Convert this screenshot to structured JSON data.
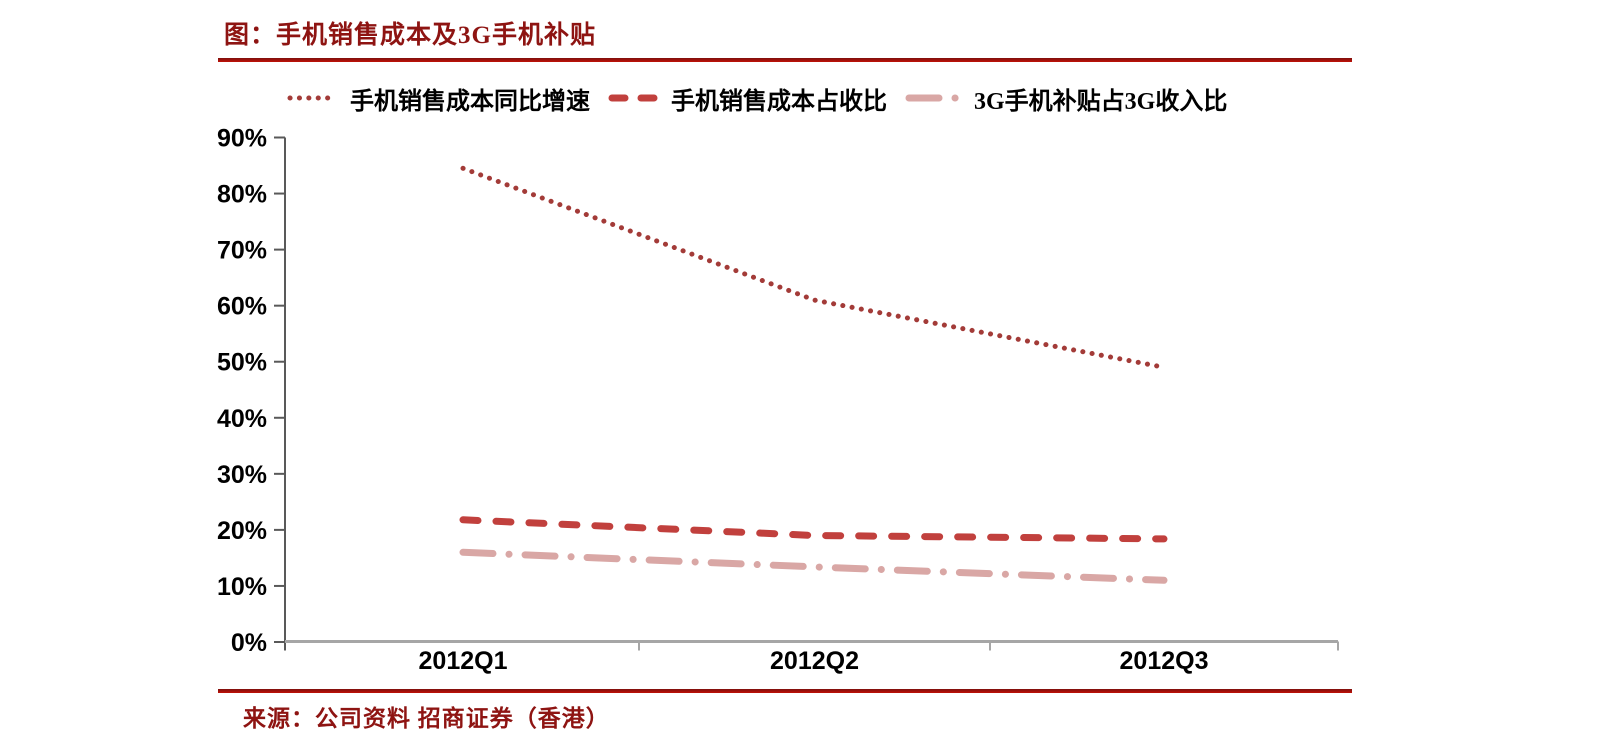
{
  "colors": {
    "title_text": "#8E1412",
    "rule_gradient_top": "#7D100D",
    "rule_gradient_bottom": "#C01108",
    "y_axis": "#595959",
    "x_axis": "#A6A6A6",
    "tick_label": "#000000"
  },
  "chart_data": {
    "type": "line",
    "title": "图：手机销售成本及3G手机补贴",
    "categories": [
      "2012Q1",
      "2012Q2",
      "2012Q3"
    ],
    "series": [
      {
        "name": "手机销售成本同比增速",
        "style": "dotted",
        "color": "#A33B38",
        "values": [
          84.5,
          61.0,
          49.0
        ]
      },
      {
        "name": "手机销售成本占收比",
        "style": "dashed",
        "color": "#C1403D",
        "values": [
          21.8,
          19.0,
          18.4
        ]
      },
      {
        "name": "3G手机补贴占3G收入比",
        "style": "dashdot",
        "color": "#D9A7A5",
        "values": [
          16.0,
          13.4,
          11.0
        ]
      }
    ],
    "ylim": [
      0,
      90
    ],
    "ytick_step": 10,
    "ytick_labels": [
      "0%",
      "10%",
      "20%",
      "30%",
      "40%",
      "50%",
      "60%",
      "70%",
      "80%",
      "90%"
    ],
    "grid": false,
    "legend_position": "top",
    "source": "来源：公司资料 招商证券（香港）"
  }
}
